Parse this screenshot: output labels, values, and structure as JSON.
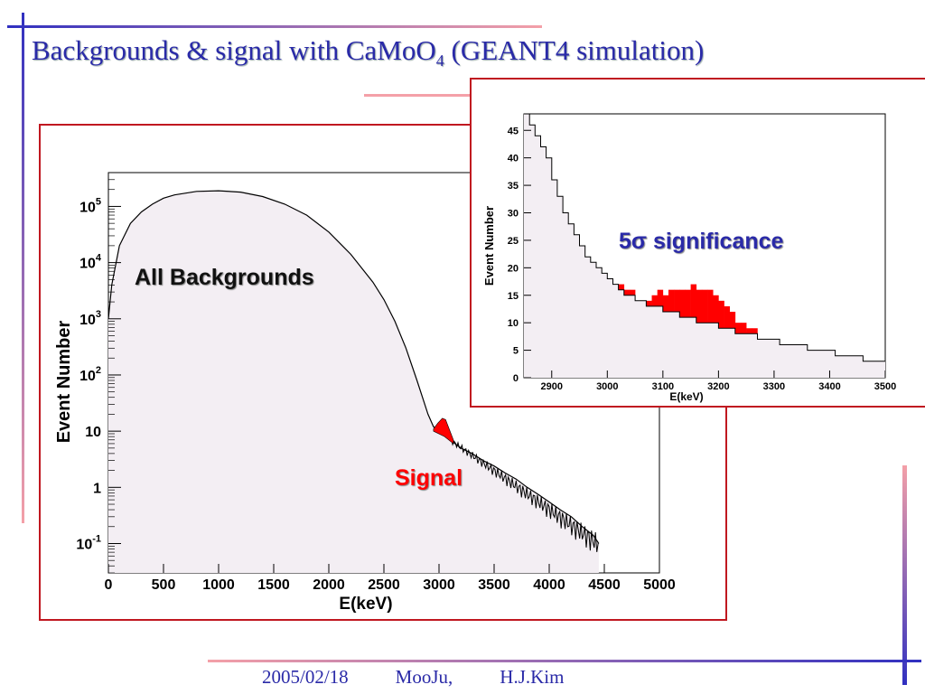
{
  "slide": {
    "title": "Backgrounds & signal with CaMoO",
    "title_subscript": "4",
    "title_suffix": " (GEANT4 simulation)",
    "footer": {
      "date": "2005/02/18",
      "project": "MooJu,",
      "author": "H.J.Kim"
    }
  },
  "colors": {
    "title": "#2a2aa8",
    "signal": "#ff0000",
    "fill": "#f3eef3",
    "frame": "#c01820"
  },
  "chart_data": [
    {
      "type": "area",
      "log_y": true,
      "xlabel": "E(keV)",
      "ylabel": "Event Number",
      "xlim": [
        0,
        5000
      ],
      "ylim": [
        0.03,
        400000
      ],
      "x_ticks": [
        0,
        500,
        1000,
        1500,
        2000,
        2500,
        3000,
        3500,
        4000,
        4500,
        5000
      ],
      "y_ticks": [
        {
          "v": 100000,
          "base": "10",
          "exp": "5"
        },
        {
          "v": 10000,
          "base": "10",
          "exp": "4"
        },
        {
          "v": 1000,
          "base": "10",
          "exp": "3"
        },
        {
          "v": 100,
          "base": "10",
          "exp": "2"
        },
        {
          "v": 10,
          "base": "10",
          "exp": ""
        },
        {
          "v": 1,
          "base": "1",
          "exp": ""
        },
        {
          "v": 0.1,
          "base": "10",
          "exp": "-1"
        }
      ],
      "annotations": {
        "backgrounds": "All Backgrounds",
        "signal": "Signal"
      },
      "series": [
        {
          "name": "All Backgrounds",
          "x": [
            0,
            30,
            100,
            200,
            300,
            400,
            500,
            600,
            800,
            1000,
            1200,
            1400,
            1600,
            1800,
            2000,
            2200,
            2400,
            2500,
            2600,
            2700,
            2800,
            2850,
            2900,
            2950,
            3000,
            3100,
            3200,
            3300,
            3400,
            3500,
            3600,
            3700,
            3800,
            3900,
            4000,
            4100,
            4200,
            4300,
            4400,
            4450
          ],
          "y": [
            1000,
            4000,
            20000,
            50000,
            80000,
            110000,
            140000,
            160000,
            185000,
            190000,
            180000,
            150000,
            110000,
            70000,
            35000,
            14000,
            4500,
            2200,
            900,
            300,
            80,
            40,
            20,
            12,
            10,
            7,
            5,
            4,
            3,
            2.4,
            1.8,
            1.4,
            1.0,
            0.75,
            0.55,
            0.4,
            0.3,
            0.2,
            0.14,
            0.1
          ]
        },
        {
          "name": "Signal",
          "x": [
            2950,
            2990,
            3030,
            3060,
            3100,
            3130
          ],
          "y": [
            11,
            14,
            17,
            16,
            10,
            7
          ]
        }
      ]
    },
    {
      "type": "bar",
      "xlabel": "E(keV)",
      "ylabel": "Event Number",
      "xlim": [
        2850,
        3500
      ],
      "ylim": [
        0,
        48
      ],
      "x_ticks": [
        2900,
        3000,
        3100,
        3200,
        3300,
        3400,
        3500
      ],
      "y_ticks": [
        0,
        5,
        10,
        15,
        20,
        25,
        30,
        35,
        40,
        45
      ],
      "annotation": "5σ significance",
      "bin_width": 10,
      "bin_edges_start": 2850,
      "series": [
        {
          "name": "Backgrounds",
          "values": [
            48,
            46,
            44,
            42,
            40,
            36,
            33,
            30,
            28,
            26,
            24,
            22,
            21,
            20,
            19,
            18,
            17,
            16,
            15,
            15,
            14,
            14,
            13,
            13,
            13,
            12,
            12,
            12,
            11,
            11,
            11,
            10,
            10,
            10,
            10,
            9,
            9,
            9,
            8,
            8,
            8,
            8,
            7,
            7,
            7,
            7,
            6,
            6,
            6,
            6,
            6,
            5,
            5,
            5,
            5,
            5,
            4,
            4,
            4,
            4,
            4,
            3,
            3,
            3,
            3
          ]
        },
        {
          "name": "Signal",
          "values": [
            0,
            0,
            0,
            0,
            0,
            0,
            0,
            0,
            0,
            0,
            0,
            0,
            0,
            0,
            0,
            0,
            0,
            1,
            1,
            1,
            0,
            0,
            1,
            2,
            3,
            3,
            4,
            4,
            5,
            5,
            6,
            6,
            6,
            6,
            5,
            5,
            4,
            3,
            2,
            2,
            1,
            1,
            0,
            0,
            0,
            0,
            0,
            0,
            0,
            0,
            0,
            0,
            0,
            0,
            0,
            0,
            0,
            0,
            0,
            0,
            0,
            0,
            0,
            0,
            0
          ]
        }
      ]
    }
  ]
}
